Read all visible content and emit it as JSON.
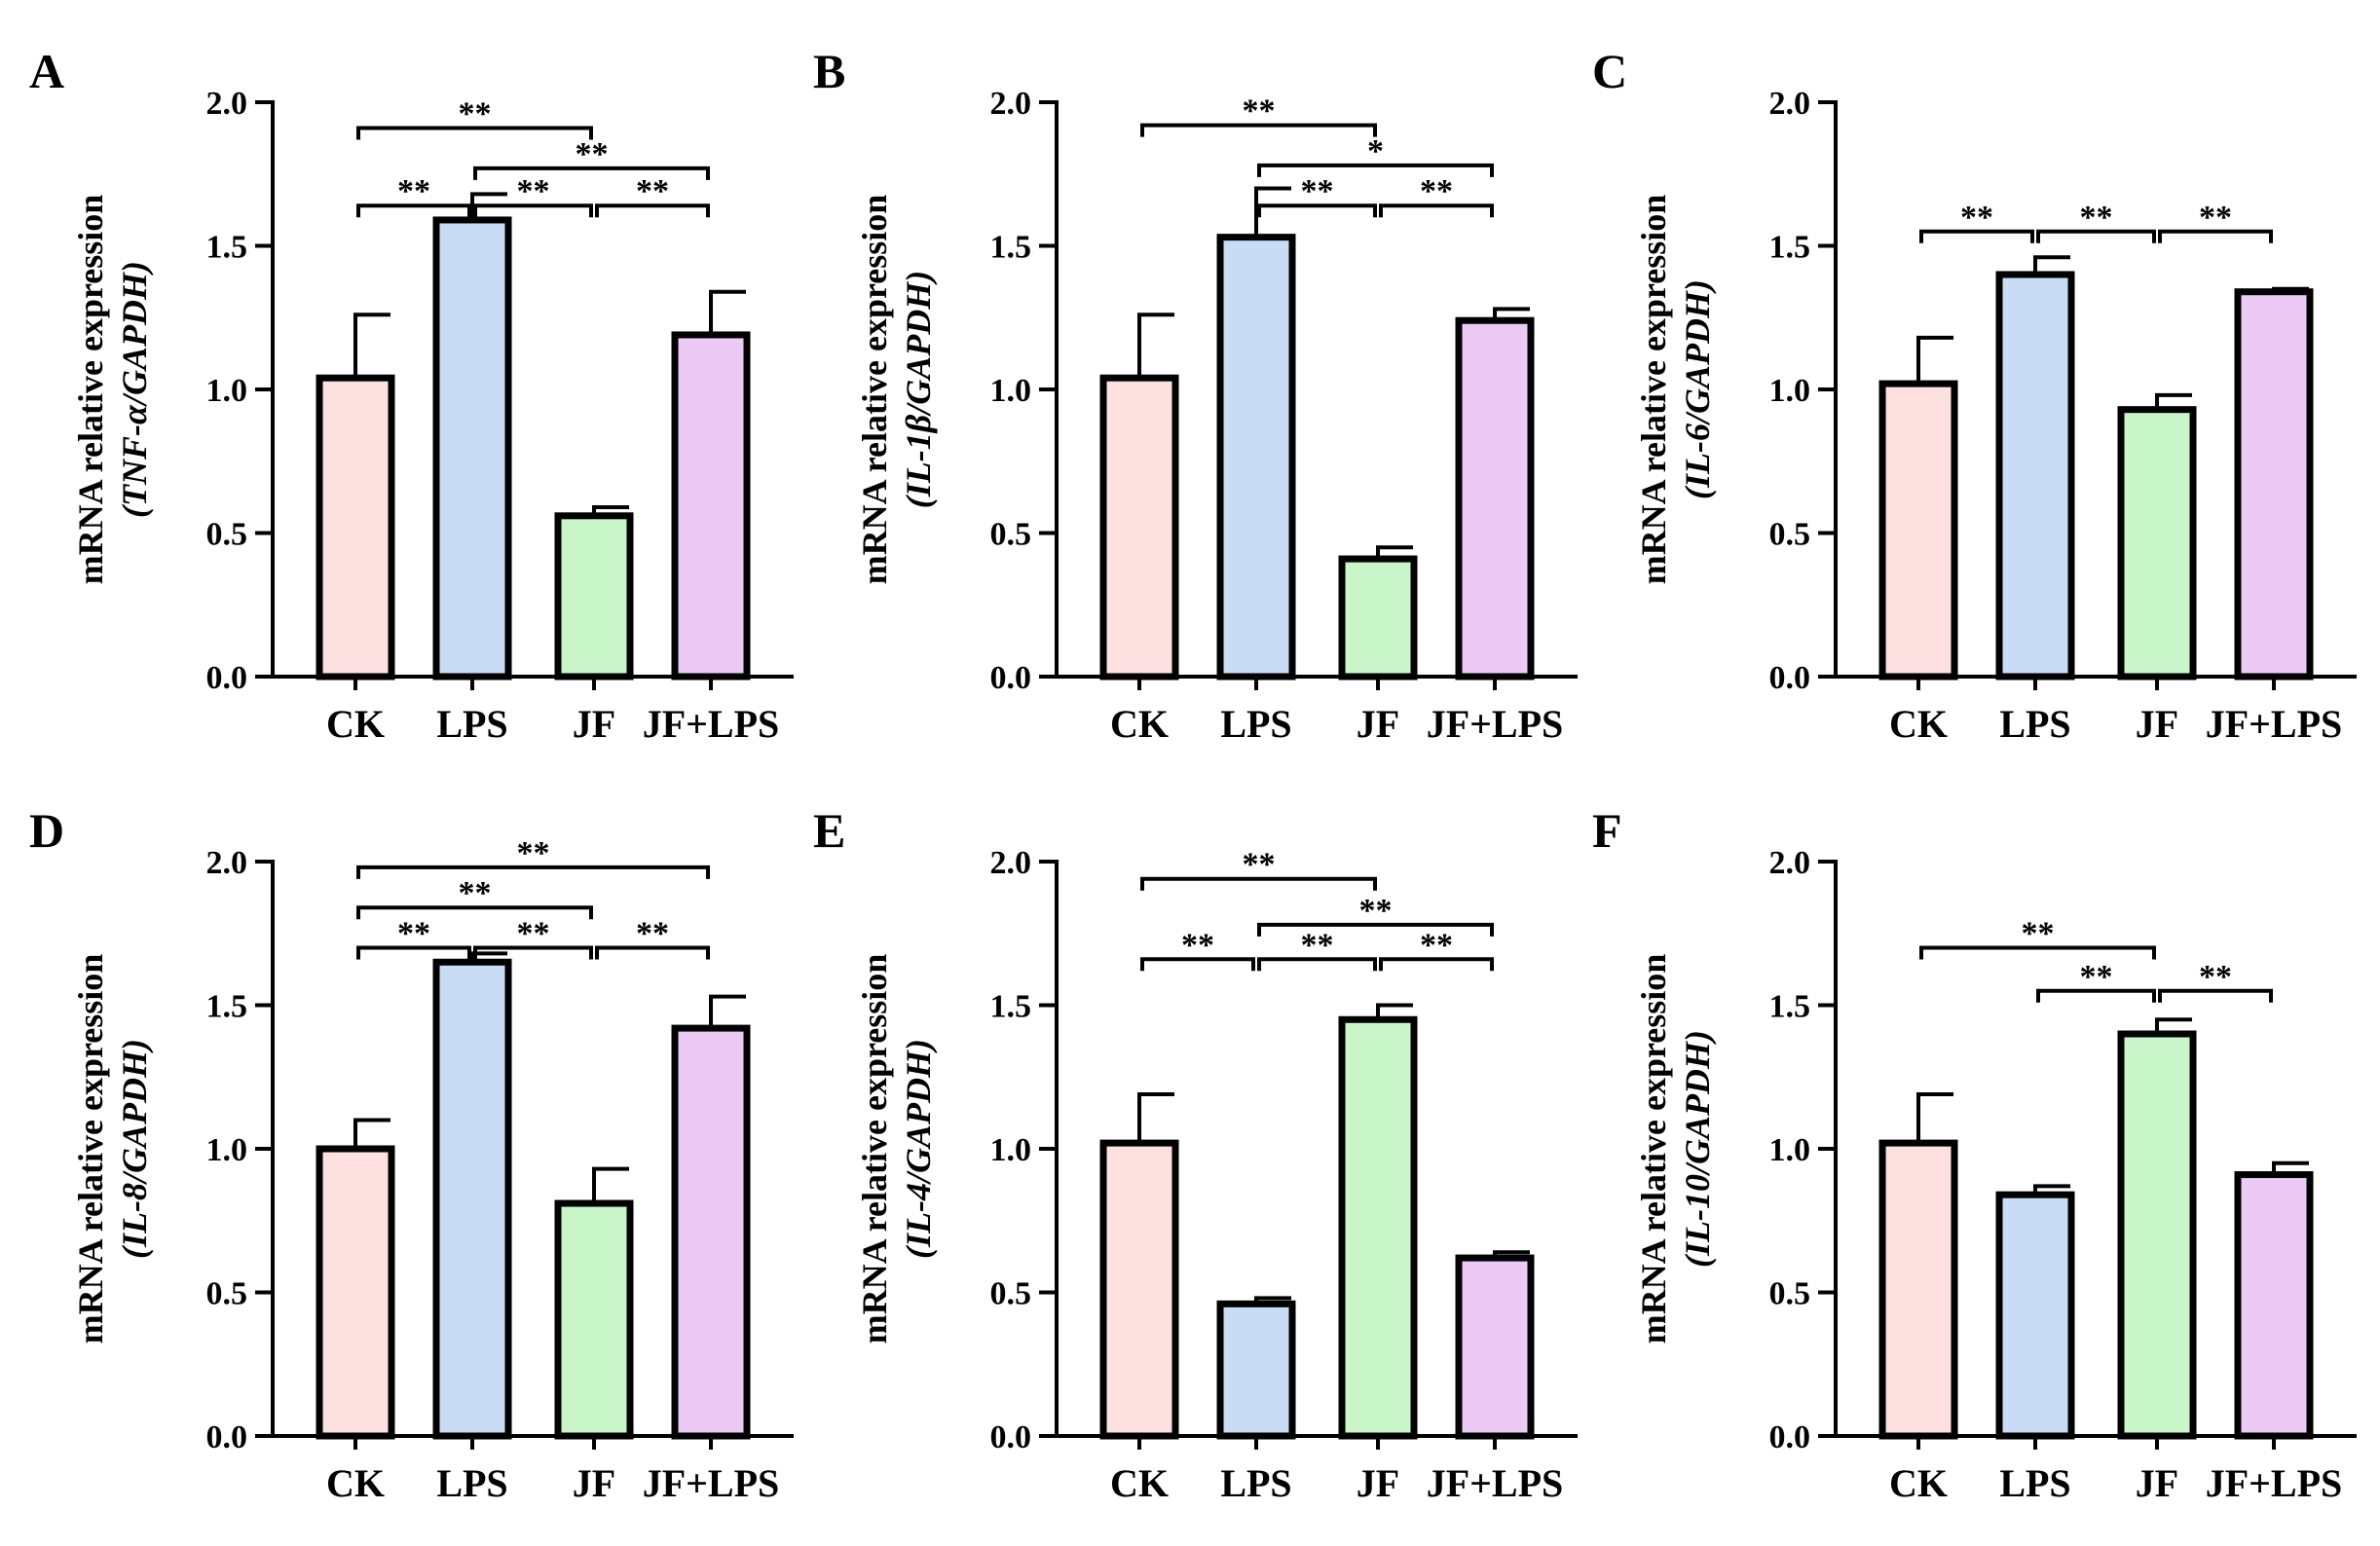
{
  "chart_data": [
    {
      "panel": "A",
      "type": "bar",
      "ylabel": "mRNA relative expression",
      "ylabel_gene": "(TNF-α/GAPDH)",
      "categories": [
        "CK",
        "LPS",
        "JF",
        "JF+LPS"
      ],
      "values": [
        1.04,
        1.59,
        0.56,
        1.19
      ],
      "errors": [
        0.22,
        0.09,
        0.03,
        0.15
      ],
      "ylim": [
        0,
        2.0
      ],
      "yticks": [
        "0.0",
        "0.5",
        "1.0",
        "1.5",
        "2.0"
      ],
      "significance": [
        {
          "from": 0,
          "to": 2,
          "level": 1.91,
          "label": "**"
        },
        {
          "from": 1,
          "to": 3,
          "level": 1.77,
          "label": "**"
        },
        {
          "from": 0,
          "to": 1,
          "level": 1.64,
          "label": "**"
        },
        {
          "from": 1,
          "to": 2,
          "level": 1.64,
          "label": "**"
        },
        {
          "from": 2,
          "to": 3,
          "level": 1.64,
          "label": "**"
        }
      ]
    },
    {
      "panel": "B",
      "type": "bar",
      "ylabel": "mRNA relative expression",
      "ylabel_gene": "(IL-1β/GAPDH)",
      "categories": [
        "CK",
        "LPS",
        "JF",
        "JF+LPS"
      ],
      "values": [
        1.04,
        1.53,
        0.41,
        1.24
      ],
      "errors": [
        0.22,
        0.17,
        0.04,
        0.04
      ],
      "ylim": [
        0,
        2.0
      ],
      "yticks": [
        "0.0",
        "0.5",
        "1.0",
        "1.5",
        "2.0"
      ],
      "significance": [
        {
          "from": 0,
          "to": 2,
          "level": 1.92,
          "label": "**"
        },
        {
          "from": 1,
          "to": 3,
          "level": 1.78,
          "label": "*"
        },
        {
          "from": 1,
          "to": 2,
          "level": 1.64,
          "label": "**"
        },
        {
          "from": 2,
          "to": 3,
          "level": 1.64,
          "label": "**"
        }
      ]
    },
    {
      "panel": "C",
      "type": "bar",
      "ylabel": "mRNA relative expression",
      "ylabel_gene": "(IL-6/GAPDH)",
      "categories": [
        "CK",
        "LPS",
        "JF",
        "JF+LPS"
      ],
      "values": [
        1.02,
        1.4,
        0.93,
        1.34
      ],
      "errors": [
        0.16,
        0.06,
        0.05,
        0.01
      ],
      "ylim": [
        0,
        2.0
      ],
      "yticks": [
        "0.0",
        "0.5",
        "1.0",
        "1.5",
        "2.0"
      ],
      "significance": [
        {
          "from": 0,
          "to": 1,
          "level": 1.55,
          "label": "**"
        },
        {
          "from": 1,
          "to": 2,
          "level": 1.55,
          "label": "**"
        },
        {
          "from": 2,
          "to": 3,
          "level": 1.55,
          "label": "**"
        }
      ]
    },
    {
      "panel": "D",
      "type": "bar",
      "ylabel": "mRNA relative expression",
      "ylabel_gene": "(IL-8/GAPDH)",
      "categories": [
        "CK",
        "LPS",
        "JF",
        "JF+LPS"
      ],
      "values": [
        1.0,
        1.65,
        0.81,
        1.42
      ],
      "errors": [
        0.1,
        0.03,
        0.12,
        0.11
      ],
      "ylim": [
        0,
        2.0
      ],
      "yticks": [
        "0.0",
        "0.5",
        "1.0",
        "1.5",
        "2.0"
      ],
      "significance": [
        {
          "from": 0,
          "to": 3,
          "level": 1.98,
          "label": "**"
        },
        {
          "from": 0,
          "to": 2,
          "level": 1.84,
          "label": "**"
        },
        {
          "from": 0,
          "to": 1,
          "level": 1.7,
          "label": "**"
        },
        {
          "from": 1,
          "to": 2,
          "level": 1.7,
          "label": "**"
        },
        {
          "from": 2,
          "to": 3,
          "level": 1.7,
          "label": "**"
        }
      ]
    },
    {
      "panel": "E",
      "type": "bar",
      "ylabel": "mRNA relative expression",
      "ylabel_gene": "(IL-4/GAPDH)",
      "categories": [
        "CK",
        "LPS",
        "JF",
        "JF+LPS"
      ],
      "values": [
        1.02,
        0.46,
        1.45,
        0.62
      ],
      "errors": [
        0.17,
        0.02,
        0.05,
        0.02
      ],
      "ylim": [
        0,
        2.0
      ],
      "yticks": [
        "0.0",
        "0.5",
        "1.0",
        "1.5",
        "2.0"
      ],
      "significance": [
        {
          "from": 0,
          "to": 2,
          "level": 1.94,
          "label": "**"
        },
        {
          "from": 1,
          "to": 3,
          "level": 1.78,
          "label": "**"
        },
        {
          "from": 0,
          "to": 1,
          "level": 1.66,
          "label": "**"
        },
        {
          "from": 1,
          "to": 2,
          "level": 1.66,
          "label": "**"
        },
        {
          "from": 2,
          "to": 3,
          "level": 1.66,
          "label": "**"
        }
      ]
    },
    {
      "panel": "F",
      "type": "bar",
      "ylabel": "mRNA relative expression",
      "ylabel_gene": "(IL-10/GAPDH)",
      "categories": [
        "CK",
        "LPS",
        "JF",
        "JF+LPS"
      ],
      "values": [
        1.02,
        0.84,
        1.4,
        0.91
      ],
      "errors": [
        0.17,
        0.03,
        0.05,
        0.04
      ],
      "ylim": [
        0,
        2.0
      ],
      "yticks": [
        "0.0",
        "0.5",
        "1.0",
        "1.5",
        "2.0"
      ],
      "significance": [
        {
          "from": 0,
          "to": 2,
          "level": 1.7,
          "label": "**"
        },
        {
          "from": 1,
          "to": 2,
          "level": 1.55,
          "label": "**"
        },
        {
          "from": 2,
          "to": 3,
          "level": 1.55,
          "label": "**"
        }
      ]
    }
  ],
  "colors": {
    "bars": [
      "#fde0e0",
      "#c9dcf6",
      "#c9f6c9",
      "#eccaf5"
    ],
    "stroke": "#000000"
  }
}
